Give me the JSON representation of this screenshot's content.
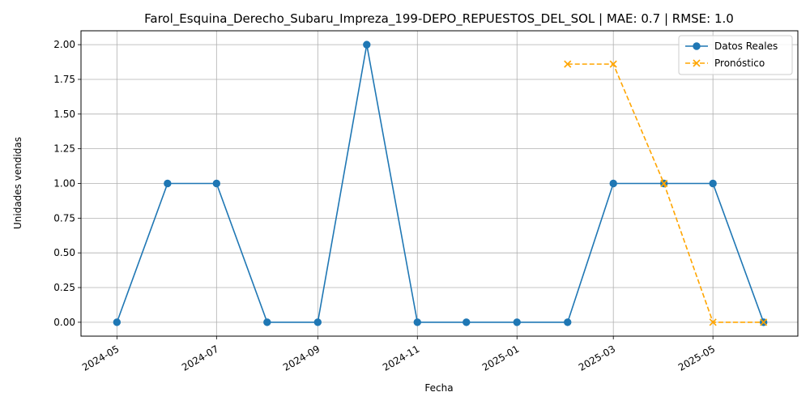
{
  "chart_data": {
    "type": "line",
    "title": "Farol_Esquina_Derecho_Subaru_Impreza_199-DEPO_REPUESTOS_DEL_SOL | MAE: 0.7 | RMSE: 1.0",
    "xlabel": "Fecha",
    "ylabel": "Unidades vendidas",
    "x_axis_type": "date",
    "xlim": [
      "2024-04-09",
      "2025-06-22"
    ],
    "ylim": [
      -0.1,
      2.1
    ],
    "x_ticks": [
      "2024-05",
      "2024-07",
      "2024-09",
      "2024-11",
      "2025-01",
      "2025-03",
      "2025-05"
    ],
    "y_ticks": [
      "0.00",
      "0.25",
      "0.50",
      "0.75",
      "1.00",
      "1.25",
      "1.50",
      "1.75",
      "2.00"
    ],
    "grid": true,
    "legend_position": "top-right",
    "series": [
      {
        "name": "Datos Reales",
        "style": "solid",
        "marker": "circle",
        "color": "#1f77b4",
        "x": [
          "2024-05-01",
          "2024-06-01",
          "2024-07-01",
          "2024-08-01",
          "2024-09-01",
          "2024-10-01",
          "2024-11-01",
          "2024-12-01",
          "2025-01-01",
          "2025-02-01",
          "2025-03-01",
          "2025-04-01",
          "2025-05-01",
          "2025-06-01"
        ],
        "y": [
          0,
          1,
          1,
          0,
          0,
          2,
          0,
          0,
          0,
          0,
          1,
          1,
          1,
          0
        ]
      },
      {
        "name": "Pronóstico",
        "style": "dashed",
        "marker": "x",
        "color": "#ffa500",
        "x": [
          "2025-02-01",
          "2025-03-01",
          "2025-04-01",
          "2025-05-01",
          "2025-06-01"
        ],
        "y": [
          1.86,
          1.86,
          1.0,
          0,
          0
        ]
      }
    ]
  }
}
